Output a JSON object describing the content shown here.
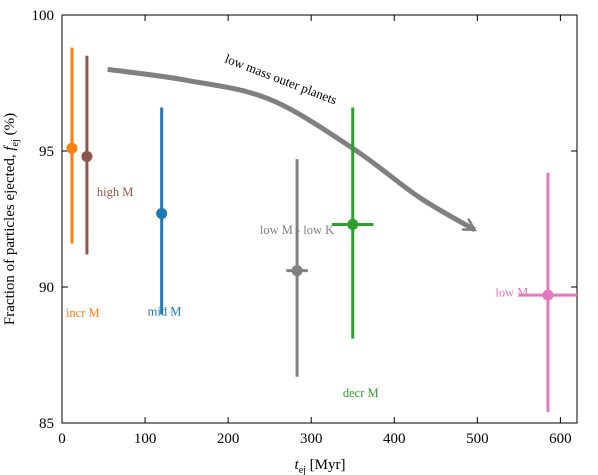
{
  "chart_data": {
    "type": "scatter",
    "xlabel": "t",
    "xlabel_sub": "ej",
    "xlabel_unit": " [Myr]",
    "ylabel": "Fraction of particles ejected, ",
    "ylabel_sym": "f",
    "ylabel_sub": "ej",
    "ylabel_unit": " (%)",
    "xlim": [
      0,
      620
    ],
    "ylim": [
      85,
      100
    ],
    "xticks": [
      0,
      100,
      200,
      300,
      400,
      500,
      600
    ],
    "yticks": [
      85,
      90,
      95,
      100
    ],
    "grid": false,
    "series": [
      {
        "name": "incr M",
        "color": "#ff7f0e",
        "x": 12,
        "y": 95.1,
        "xerr": [
          0,
          0
        ],
        "yerr": [
          3.5,
          3.7
        ]
      },
      {
        "name": "high M",
        "color": "#8c564b",
        "x": 30,
        "y": 94.8,
        "xerr": [
          0,
          0
        ],
        "yerr": [
          3.6,
          3.7
        ]
      },
      {
        "name": "mid M",
        "color": "#1f77b4",
        "x": 120,
        "y": 92.7,
        "xerr": [
          0,
          0
        ],
        "yerr": [
          3.7,
          3.9
        ]
      },
      {
        "name": "low M - low K",
        "color": "#7f7f7f",
        "x": 283,
        "y": 90.6,
        "xerr": [
          13,
          13
        ],
        "yerr": [
          3.9,
          4.1
        ]
      },
      {
        "name": "decr M",
        "color": "#2ca02c",
        "x": 350,
        "y": 92.3,
        "xerr": [
          25,
          25
        ],
        "yerr": [
          4.2,
          4.3
        ]
      },
      {
        "name": "low M",
        "color": "#e377c2",
        "x": 585,
        "y": 89.7,
        "xerr": [
          35,
          35
        ],
        "yerr": [
          4.3,
          4.5
        ]
      }
    ],
    "annotation": {
      "text": "low mass outer planets",
      "arrow": [
        [
          55,
          98.0
        ],
        [
          150,
          97.6
        ],
        [
          250,
          96.9
        ],
        [
          350,
          95.1
        ],
        [
          430,
          93.3
        ],
        [
          497,
          92.1
        ]
      ]
    }
  }
}
